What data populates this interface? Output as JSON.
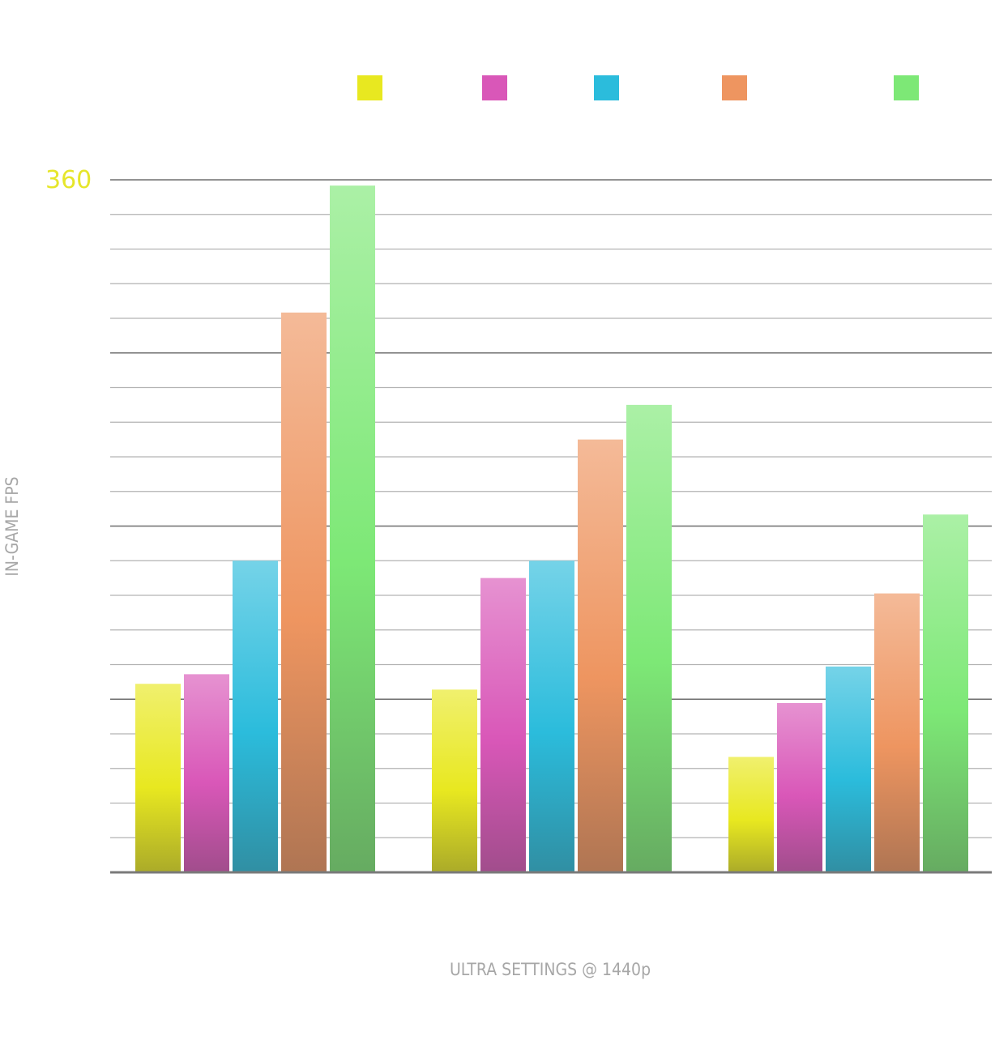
{
  "chart_data": {
    "type": "bar",
    "xlabel": "ULTRA SETTINGS @ 1440p",
    "ylabel": "IN-GAME FPS",
    "ylim": [
      0,
      360
    ],
    "y_tick_labels": [
      "360"
    ],
    "grid": true,
    "legend_position": "top",
    "categories": [
      "",
      "",
      ""
    ],
    "series": [
      {
        "color": "#e8e820",
        "values": [
          98,
          95,
          60
        ]
      },
      {
        "color": "#d957b8",
        "values": [
          103,
          153,
          88
        ]
      },
      {
        "color": "#2bbcdc",
        "values": [
          162,
          162,
          107
        ]
      },
      {
        "color": "#ee9560",
        "values": [
          291,
          225,
          145
        ]
      },
      {
        "color": "#7de876",
        "values": [
          357,
          243,
          186
        ]
      }
    ]
  },
  "colors": {
    "ymax_label": "#e6e62a",
    "axis_title": "#a7a7a7",
    "grid_major": "#6e6e6e",
    "grid_minor": "#b3b3b3",
    "baseline": "#7a7a7a"
  }
}
